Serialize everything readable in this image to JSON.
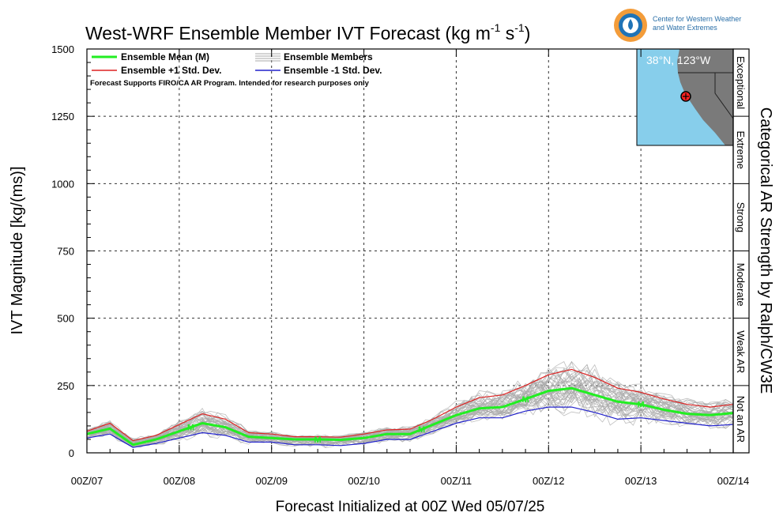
{
  "header": {
    "title": "West-WRF Ensemble Member IVT Forecast (kg m",
    "title_sup1": "-1",
    "title_mid": " s",
    "title_sup2": "-1",
    "title_end": ")",
    "logo_line1": "Center for Western Weather",
    "logo_line2": "and Water Extremes"
  },
  "legend": {
    "mean": "Ensemble Mean (M)",
    "members": "Ensemble Members",
    "plus_sd": "Ensemble +1 Std. Dev.",
    "minus_sd": "Ensemble -1 Std. Dev.",
    "note": "Forecast Supports FIRO/CA AR Program. Intended for research purposes only"
  },
  "map": {
    "label": "38°N, 123°W"
  },
  "categories": {
    "title": "Categorical AR Strength by Ralph/CW3E",
    "bands": [
      {
        "label": "Exceptional",
        "from": 1250,
        "to": 1500
      },
      {
        "label": "Extreme",
        "from": 1000,
        "to": 1250
      },
      {
        "label": "Strong",
        "from": 750,
        "to": 1000
      },
      {
        "label": "Moderate",
        "from": 500,
        "to": 750
      },
      {
        "label": "Weak AR",
        "from": 250,
        "to": 500
      },
      {
        "label": "Not an AR",
        "from": 0,
        "to": 250
      }
    ]
  },
  "colors": {
    "mean": "#22ee22",
    "plus_sd": "#dd2222",
    "minus_sd": "#2222cc",
    "members": "#aaaaaa",
    "map_ocean": "#87ceeb",
    "map_land": "#7a7a7a"
  },
  "chart_data": {
    "type": "line",
    "xlabel": "Forecast Initialized at 00Z Wed 05/07/25",
    "ylabel": "IVT Magnitude [kg/(ms)]",
    "xlim": [
      0,
      168
    ],
    "ylim": [
      0,
      1500
    ],
    "x_ticks": [
      0,
      24,
      48,
      72,
      96,
      120,
      144,
      168
    ],
    "x_tick_labels": [
      "00Z/07",
      "00Z/08",
      "00Z/09",
      "00Z/10",
      "00Z/11",
      "00Z/12",
      "00Z/13",
      "00Z/14"
    ],
    "y_ticks": [
      0,
      250,
      500,
      750,
      1000,
      1250,
      1500
    ],
    "y_tick_labels": [
      "0",
      "250",
      "500",
      "750",
      "1000",
      "1250",
      "1500"
    ],
    "grid": true,
    "x": [
      0,
      6,
      12,
      18,
      24,
      30,
      36,
      42,
      48,
      54,
      60,
      66,
      72,
      78,
      84,
      90,
      96,
      102,
      108,
      114,
      120,
      126,
      132,
      138,
      144,
      150,
      156,
      162,
      168
    ],
    "series": [
      {
        "name": "Ensemble Mean (M)",
        "role": "mean",
        "values": [
          70,
          90,
          30,
          50,
          80,
          110,
          95,
          60,
          55,
          50,
          50,
          48,
          55,
          70,
          70,
          105,
          140,
          165,
          170,
          200,
          230,
          240,
          215,
          190,
          180,
          160,
          145,
          140,
          148
        ]
      },
      {
        "name": "Ensemble +1 Std. Dev.",
        "role": "plus",
        "values": [
          80,
          110,
          45,
          65,
          105,
          145,
          125,
          75,
          70,
          60,
          60,
          58,
          70,
          85,
          88,
          125,
          170,
          205,
          215,
          250,
          290,
          310,
          280,
          240,
          225,
          200,
          180,
          170,
          180
        ]
      },
      {
        "name": "Ensemble -1 Std. Dev.",
        "role": "minus",
        "values": [
          55,
          70,
          20,
          35,
          55,
          75,
          65,
          40,
          40,
          30,
          30,
          27,
          35,
          50,
          50,
          80,
          110,
          130,
          130,
          155,
          170,
          170,
          150,
          125,
          130,
          120,
          110,
          100,
          105
        ]
      }
    ],
    "members_spread": "ensemble members drawn within roughly ±1.5 std. dev. of the mean"
  }
}
